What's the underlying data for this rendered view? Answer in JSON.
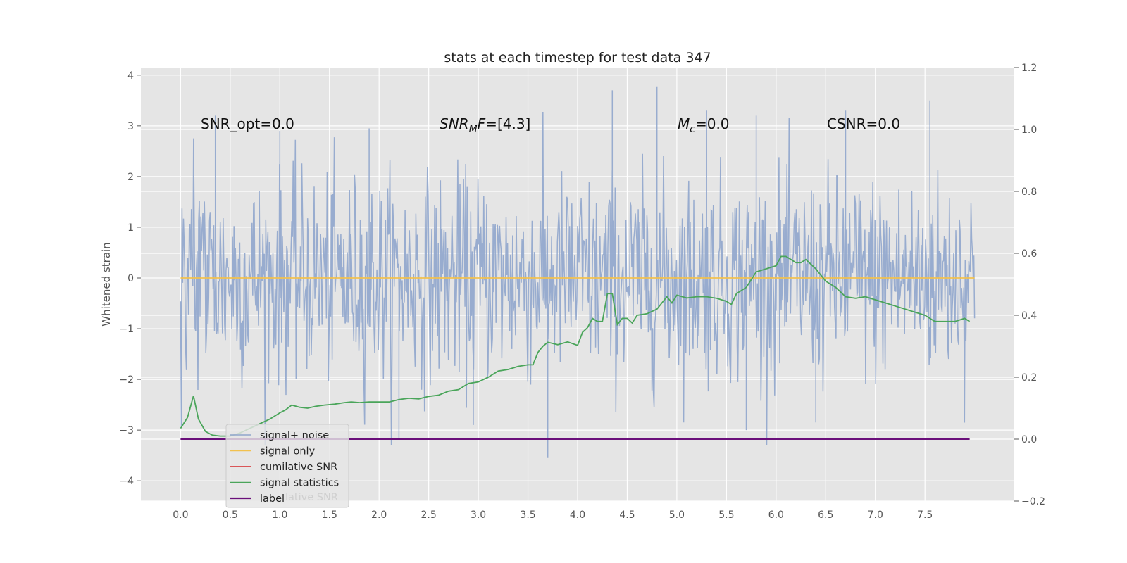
{
  "chart_data": {
    "type": "line",
    "title": "stats at each timestep for test data 347",
    "ylabel": "Whitened strain",
    "xlim": [
      -0.4,
      8.4
    ],
    "ylim_left": [
      -4.4,
      4.15
    ],
    "ylim_right": [
      -0.2,
      1.2
    ],
    "x_ticks": [
      0.0,
      0.5,
      1.0,
      1.5,
      2.0,
      2.5,
      3.0,
      3.5,
      4.0,
      4.5,
      5.0,
      5.5,
      6.0,
      6.5,
      7.0,
      7.5
    ],
    "x_tick_labels": [
      "0.0",
      "0.5",
      "1.0",
      "1.5",
      "2.0",
      "2.5",
      "3.0",
      "3.5",
      "4.0",
      "4.5",
      "5.0",
      "5.5",
      "6.0",
      "6.5",
      "7.0",
      "7.5"
    ],
    "y_left_ticks": [
      -4,
      -3,
      -2,
      -1,
      0,
      1,
      2,
      3,
      4
    ],
    "y_left_tick_labels": [
      "−4",
      "−3",
      "−2",
      "−1",
      "0",
      "1",
      "2",
      "3",
      "4"
    ],
    "y_right_ticks": [
      -0.2,
      0.0,
      0.2,
      0.4,
      0.6,
      0.8,
      1.0,
      1.2
    ],
    "y_right_tick_labels": [
      "−0.2",
      "0.0",
      "0.2",
      "0.4",
      "0.6",
      "0.8",
      "1.0",
      "1.2"
    ],
    "grid": true,
    "legend_position": "lower-left",
    "annotations": {
      "snr_opt": "SNR_opt=0.0",
      "snr_mf": "[4.3]",
      "mc": "=0.0",
      "csnr": "CSNR=0.0"
    },
    "series": [
      {
        "name": "signal+ noise",
        "color": "#8fa5cc",
        "axis": "left",
        "x_range": [
          0,
          8
        ],
        "envelope_approx": [
          -2.0,
          2.2
        ],
        "peak_max": 3.78,
        "peak_min": -3.55
      },
      {
        "name": "signal only",
        "color": "#f2c14e",
        "axis": "left",
        "x": [
          0,
          8
        ],
        "y": [
          0,
          0
        ]
      },
      {
        "name": "cumilative SNR",
        "color": "#d62728",
        "axis": "right",
        "x": [],
        "y": []
      },
      {
        "name": "signal statistics",
        "color": "#4aa55a",
        "axis": "right",
        "x": [
          0.0,
          0.07,
          0.13,
          0.18,
          0.25,
          0.32,
          0.4,
          0.5,
          0.6,
          0.7,
          0.8,
          0.9,
          1.0,
          1.06,
          1.12,
          1.2,
          1.28,
          1.36,
          1.45,
          1.55,
          1.65,
          1.72,
          1.8,
          1.9,
          2.0,
          2.1,
          2.2,
          2.3,
          2.4,
          2.5,
          2.6,
          2.7,
          2.8,
          2.9,
          3.0,
          3.1,
          3.2,
          3.3,
          3.4,
          3.5,
          3.55,
          3.6,
          3.65,
          3.7,
          3.8,
          3.9,
          4.0,
          4.05,
          4.1,
          4.15,
          4.2,
          4.25,
          4.3,
          4.35,
          4.4,
          4.45,
          4.5,
          4.55,
          4.6,
          4.7,
          4.8,
          4.9,
          4.95,
          5.0,
          5.1,
          5.2,
          5.3,
          5.4,
          5.5,
          5.55,
          5.6,
          5.7,
          5.8,
          5.9,
          6.0,
          6.05,
          6.1,
          6.15,
          6.2,
          6.25,
          6.3,
          6.4,
          6.5,
          6.6,
          6.7,
          6.8,
          6.9,
          7.0,
          7.1,
          7.2,
          7.3,
          7.4,
          7.5,
          7.55,
          7.6,
          7.7,
          7.8,
          7.9,
          7.95
        ],
        "y": [
          0.035,
          0.07,
          0.14,
          0.065,
          0.025,
          0.013,
          0.01,
          0.01,
          0.02,
          0.035,
          0.05,
          0.065,
          0.085,
          0.095,
          0.11,
          0.103,
          0.1,
          0.106,
          0.11,
          0.113,
          0.118,
          0.12,
          0.118,
          0.12,
          0.12,
          0.12,
          0.128,
          0.132,
          0.13,
          0.138,
          0.142,
          0.155,
          0.16,
          0.18,
          0.185,
          0.2,
          0.22,
          0.225,
          0.235,
          0.24,
          0.24,
          0.28,
          0.3,
          0.313,
          0.305,
          0.314,
          0.303,
          0.345,
          0.36,
          0.39,
          0.38,
          0.38,
          0.47,
          0.47,
          0.37,
          0.39,
          0.39,
          0.375,
          0.4,
          0.405,
          0.42,
          0.46,
          0.44,
          0.465,
          0.456,
          0.46,
          0.46,
          0.455,
          0.445,
          0.435,
          0.47,
          0.49,
          0.54,
          0.55,
          0.56,
          0.59,
          0.59,
          0.58,
          0.57,
          0.57,
          0.58,
          0.55,
          0.51,
          0.49,
          0.46,
          0.455,
          0.46,
          0.45,
          0.44,
          0.43,
          0.42,
          0.41,
          0.4,
          0.39,
          0.38,
          0.38,
          0.38,
          0.39,
          0.38
        ]
      },
      {
        "name": "label",
        "color": "#6a0f7a",
        "axis": "right",
        "x": [
          0,
          7.95
        ],
        "y": [
          0.0,
          0.0
        ]
      }
    ],
    "legend_ghost_text": "lative SNR"
  }
}
